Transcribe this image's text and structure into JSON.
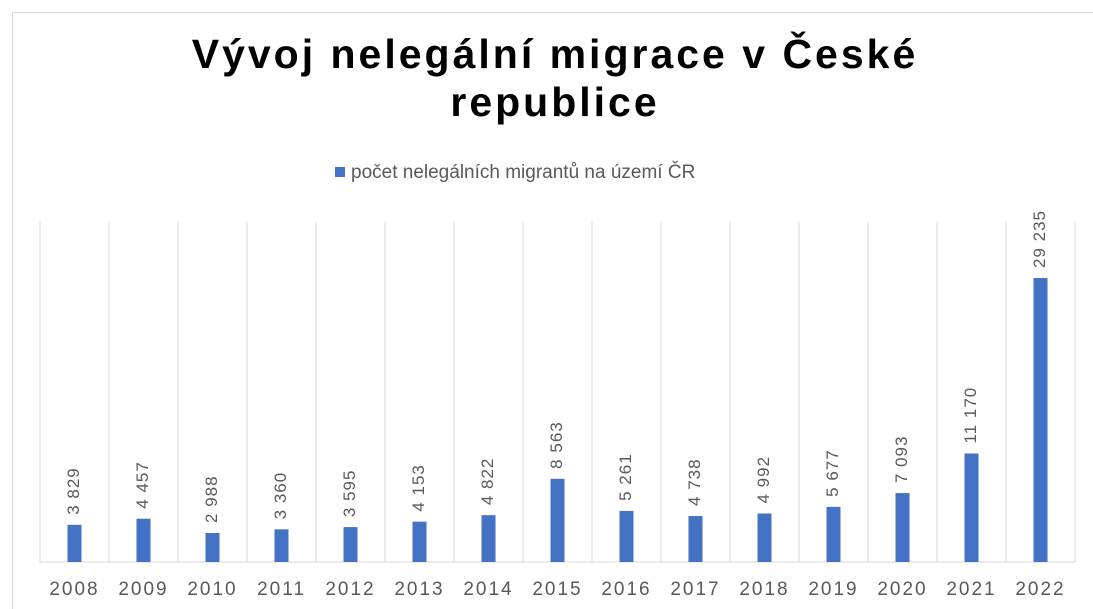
{
  "chart_data": {
    "type": "bar",
    "title": "Vývoj nelegální migrace v České republice",
    "categories": [
      "2008",
      "2009",
      "2010",
      "2011",
      "2012",
      "2013",
      "2014",
      "2015",
      "2016",
      "2017",
      "2018",
      "2019",
      "2020",
      "2021",
      "2022"
    ],
    "series": [
      {
        "name": "počet nelegálních migrantů na území ČR",
        "color": "#4472c4",
        "values": [
          3829,
          4457,
          2988,
          3360,
          3595,
          4153,
          4822,
          8563,
          5261,
          4738,
          4992,
          5677,
          7093,
          11170,
          29235
        ],
        "value_labels": [
          "3 829",
          "4 457",
          "2 988",
          "3 360",
          "3 595",
          "4 153",
          "4 822",
          "8 563",
          "5 261",
          "4 738",
          "4 992",
          "5 677",
          "7 093",
          "11 170",
          "29 235"
        ]
      }
    ],
    "ylim": [
      0,
      35000
    ],
    "grid": true,
    "legend": "top"
  }
}
